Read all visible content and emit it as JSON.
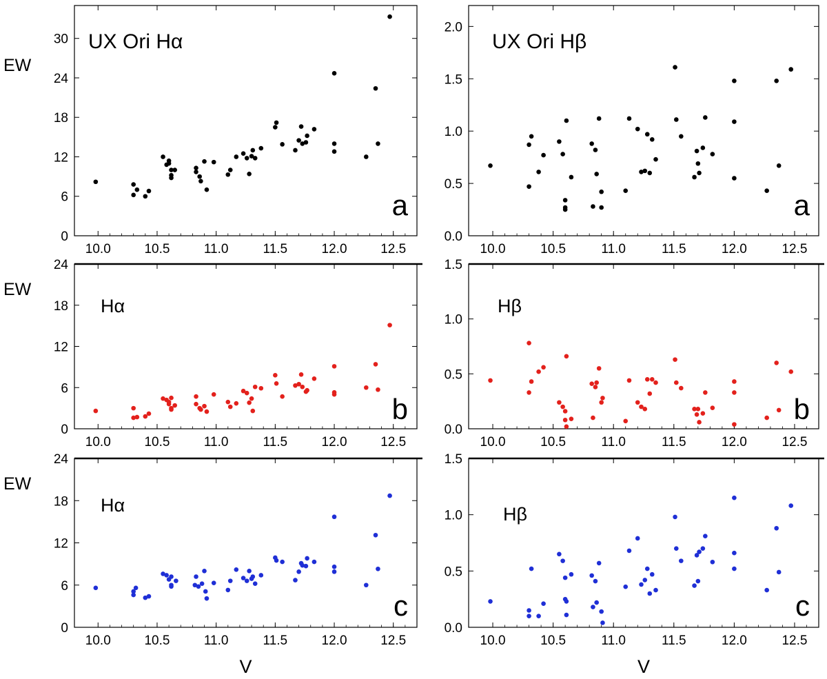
{
  "chart_data": [
    {
      "id": "ha-a",
      "type": "scatter",
      "title": "UX Ori  Hα",
      "panel_letter": "a",
      "ylabel": "EW",
      "xlabel": "",
      "color": "#000000",
      "xlim": [
        9.8,
        12.7
      ],
      "ylim": [
        0,
        35
      ],
      "xticks": [
        "10.0",
        "10.5",
        "11.0",
        "11.5",
        "12.0",
        "12.5"
      ],
      "yticks": [
        "0",
        "6",
        "12",
        "18",
        "24",
        "30"
      ],
      "ref_line": null,
      "points": [
        [
          9.98,
          8.2
        ],
        [
          10.3,
          7.8
        ],
        [
          10.3,
          6.2
        ],
        [
          10.33,
          7
        ],
        [
          10.4,
          6
        ],
        [
          10.43,
          6.8
        ],
        [
          10.55,
          12
        ],
        [
          10.58,
          10.8
        ],
        [
          10.6,
          11.4
        ],
        [
          10.6,
          11
        ],
        [
          10.62,
          10
        ],
        [
          10.62,
          9.2
        ],
        [
          10.62,
          8.8
        ],
        [
          10.65,
          10
        ],
        [
          10.83,
          10.3
        ],
        [
          10.83,
          9.7
        ],
        [
          10.86,
          9
        ],
        [
          10.87,
          8.3
        ],
        [
          10.9,
          11.3
        ],
        [
          10.92,
          7
        ],
        [
          10.98,
          11.2
        ],
        [
          11.1,
          9.3
        ],
        [
          11.12,
          10
        ],
        [
          11.17,
          12
        ],
        [
          11.23,
          12.5
        ],
        [
          11.26,
          11.8
        ],
        [
          11.28,
          9.4
        ],
        [
          11.3,
          12.1
        ],
        [
          11.31,
          13
        ],
        [
          11.33,
          11.8
        ],
        [
          11.38,
          13.3
        ],
        [
          11.5,
          16.5
        ],
        [
          11.51,
          17.2
        ],
        [
          11.56,
          13.9
        ],
        [
          11.67,
          13
        ],
        [
          11.7,
          14.5
        ],
        [
          11.72,
          16.6
        ],
        [
          11.73,
          14
        ],
        [
          11.76,
          14.2
        ],
        [
          11.77,
          15.2
        ],
        [
          11.83,
          16.2
        ],
        [
          12.0,
          24.7
        ],
        [
          12.0,
          14
        ],
        [
          12.0,
          12.8
        ],
        [
          12.27,
          12
        ],
        [
          12.35,
          22.4
        ],
        [
          12.37,
          14
        ],
        [
          12.47,
          33.3
        ]
      ]
    },
    {
      "id": "hb-a",
      "type": "scatter",
      "title": "UX Ori  Hβ",
      "panel_letter": "a",
      "ylabel": "",
      "xlabel": "",
      "color": "#000000",
      "xlim": [
        9.8,
        12.7
      ],
      "ylim": [
        0,
        2.2
      ],
      "xticks": [
        "10.0",
        "10.5",
        "11.0",
        "11.5",
        "12.0",
        "12.5"
      ],
      "yticks": [
        "0.0",
        "0.5",
        "1.0",
        "1.5",
        "2.0"
      ],
      "ref_line": null,
      "points": [
        [
          9.98,
          0.67
        ],
        [
          10.3,
          0.87
        ],
        [
          10.3,
          0.47
        ],
        [
          10.32,
          0.95
        ],
        [
          10.38,
          0.61
        ],
        [
          10.42,
          0.77
        ],
        [
          10.55,
          0.9
        ],
        [
          10.58,
          0.78
        ],
        [
          10.6,
          0.34
        ],
        [
          10.6,
          0.27
        ],
        [
          10.6,
          0.25
        ],
        [
          10.61,
          1.1
        ],
        [
          10.65,
          0.56
        ],
        [
          10.82,
          0.88
        ],
        [
          10.83,
          0.28
        ],
        [
          10.85,
          0.82
        ],
        [
          10.86,
          0.59
        ],
        [
          10.88,
          1.12
        ],
        [
          10.9,
          0.42
        ],
        [
          10.9,
          0.27
        ],
        [
          11.1,
          0.43
        ],
        [
          11.13,
          1.12
        ],
        [
          11.2,
          1.02
        ],
        [
          11.23,
          0.61
        ],
        [
          11.26,
          0.62
        ],
        [
          11.28,
          0.97
        ],
        [
          11.3,
          0.6
        ],
        [
          11.32,
          0.92
        ],
        [
          11.35,
          0.73
        ],
        [
          11.51,
          1.61
        ],
        [
          11.52,
          1.11
        ],
        [
          11.56,
          0.95
        ],
        [
          11.67,
          0.56
        ],
        [
          11.69,
          0.81
        ],
        [
          11.7,
          0.69
        ],
        [
          11.71,
          0.6
        ],
        [
          11.74,
          0.84
        ],
        [
          11.76,
          1.13
        ],
        [
          11.82,
          0.78
        ],
        [
          12.0,
          1.48
        ],
        [
          12.0,
          1.09
        ],
        [
          12.0,
          0.55
        ],
        [
          12.27,
          0.43
        ],
        [
          12.35,
          1.48
        ],
        [
          12.37,
          0.67
        ],
        [
          12.47,
          1.59
        ]
      ]
    },
    {
      "id": "ha-b",
      "type": "scatter",
      "title": "Hα",
      "panel_letter": "b",
      "ylabel": "EW",
      "xlabel": "",
      "color": "#e3211c",
      "xlim": [
        9.8,
        12.7
      ],
      "ylim": [
        0,
        24
      ],
      "xticks": [
        "10.0",
        "10.5",
        "11.0",
        "11.5",
        "12.0",
        "12.5"
      ],
      "yticks": [
        "0",
        "6",
        "12",
        "18",
        "24"
      ],
      "ref_line": 24,
      "points": [
        [
          9.98,
          2.6
        ],
        [
          10.3,
          1.6
        ],
        [
          10.3,
          3
        ],
        [
          10.33,
          1.7
        ],
        [
          10.4,
          1.8
        ],
        [
          10.43,
          2.2
        ],
        [
          10.55,
          4.4
        ],
        [
          10.58,
          4.2
        ],
        [
          10.6,
          3.9
        ],
        [
          10.6,
          3.6
        ],
        [
          10.62,
          4.5
        ],
        [
          10.62,
          3
        ],
        [
          10.62,
          2.8
        ],
        [
          10.65,
          3.4
        ],
        [
          10.83,
          4.7
        ],
        [
          10.83,
          3.6
        ],
        [
          10.86,
          3
        ],
        [
          10.87,
          2.8
        ],
        [
          10.9,
          3.3
        ],
        [
          10.92,
          2.5
        ],
        [
          10.98,
          5
        ],
        [
          11.1,
          3.9
        ],
        [
          11.12,
          3.2
        ],
        [
          11.17,
          3.7
        ],
        [
          11.23,
          5.5
        ],
        [
          11.26,
          5.2
        ],
        [
          11.28,
          3.8
        ],
        [
          11.3,
          4.4
        ],
        [
          11.31,
          2.6
        ],
        [
          11.33,
          6.1
        ],
        [
          11.38,
          5.9
        ],
        [
          11.5,
          7.8
        ],
        [
          11.51,
          6.6
        ],
        [
          11.56,
          4.7
        ],
        [
          11.67,
          6.3
        ],
        [
          11.7,
          6.5
        ],
        [
          11.72,
          7.9
        ],
        [
          11.73,
          6.1
        ],
        [
          11.76,
          5.4
        ],
        [
          11.77,
          5.6
        ],
        [
          11.83,
          7.3
        ],
        [
          12.0,
          9.1
        ],
        [
          12.0,
          5.3
        ],
        [
          12.0,
          5
        ],
        [
          12.27,
          6
        ],
        [
          12.35,
          9.4
        ],
        [
          12.37,
          5.7
        ],
        [
          12.47,
          15.1
        ]
      ]
    },
    {
      "id": "hb-b",
      "type": "scatter",
      "title": "Hβ",
      "panel_letter": "b",
      "ylabel": "",
      "xlabel": "",
      "color": "#e3211c",
      "xlim": [
        9.8,
        12.7
      ],
      "ylim": [
        0,
        1.5
      ],
      "xticks": [
        "10.0",
        "10.5",
        "11.0",
        "11.5",
        "12.0",
        "12.5"
      ],
      "yticks": [
        "0.0",
        "0.5",
        "1.0",
        "1.5"
      ],
      "ref_line": 1.5,
      "points": [
        [
          9.98,
          0.44
        ],
        [
          10.3,
          0.78
        ],
        [
          10.3,
          0.33
        ],
        [
          10.32,
          0.43
        ],
        [
          10.38,
          0.52
        ],
        [
          10.42,
          0.56
        ],
        [
          10.55,
          0.24
        ],
        [
          10.58,
          0.2
        ],
        [
          10.6,
          0.16
        ],
        [
          10.6,
          0.08
        ],
        [
          10.61,
          0.66
        ],
        [
          10.61,
          0.02
        ],
        [
          10.65,
          0.09
        ],
        [
          10.82,
          0.41
        ],
        [
          10.83,
          0.1
        ],
        [
          10.85,
          0.38
        ],
        [
          10.86,
          0.42
        ],
        [
          10.88,
          0.55
        ],
        [
          10.9,
          0.24
        ],
        [
          10.91,
          0.28
        ],
        [
          11.1,
          0.07
        ],
        [
          11.13,
          0.44
        ],
        [
          11.2,
          0.24
        ],
        [
          11.23,
          0.2
        ],
        [
          11.26,
          0.18
        ],
        [
          11.28,
          0.45
        ],
        [
          11.3,
          0.32
        ],
        [
          11.32,
          0.45
        ],
        [
          11.35,
          0.42
        ],
        [
          11.51,
          0.63
        ],
        [
          11.52,
          0.42
        ],
        [
          11.56,
          0.37
        ],
        [
          11.67,
          0.18
        ],
        [
          11.69,
          0.13
        ],
        [
          11.7,
          0.18
        ],
        [
          11.71,
          0.06
        ],
        [
          11.74,
          0.14
        ],
        [
          11.76,
          0.33
        ],
        [
          11.82,
          0.19
        ],
        [
          12.0,
          0.43
        ],
        [
          12.0,
          0.33
        ],
        [
          12.0,
          0.04
        ],
        [
          12.27,
          0.1
        ],
        [
          12.35,
          0.6
        ],
        [
          12.37,
          0.17
        ],
        [
          12.47,
          0.52
        ]
      ]
    },
    {
      "id": "ha-c",
      "type": "scatter",
      "title": "Hα",
      "panel_letter": "c",
      "ylabel": "EW",
      "xlabel": "V",
      "color": "#1f2fd6",
      "xlim": [
        9.8,
        12.7
      ],
      "ylim": [
        0,
        24
      ],
      "xticks": [
        "10.0",
        "10.5",
        "11.0",
        "11.5",
        "12.0",
        "12.5"
      ],
      "yticks": [
        "0",
        "6",
        "12",
        "18",
        "24"
      ],
      "ref_line": 24,
      "points": [
        [
          9.98,
          5.6
        ],
        [
          10.3,
          4.6
        ],
        [
          10.3,
          5.1
        ],
        [
          10.32,
          5.6
        ],
        [
          10.4,
          4.2
        ],
        [
          10.43,
          4.4
        ],
        [
          10.55,
          7.6
        ],
        [
          10.58,
          7.4
        ],
        [
          10.6,
          6.8
        ],
        [
          10.62,
          7.2
        ],
        [
          10.62,
          6
        ],
        [
          10.62,
          5.8
        ],
        [
          10.66,
          6.6
        ],
        [
          10.82,
          6
        ],
        [
          10.83,
          7.2
        ],
        [
          10.85,
          5.8
        ],
        [
          10.88,
          6.2
        ],
        [
          10.9,
          8
        ],
        [
          10.91,
          5.1
        ],
        [
          10.92,
          4.1
        ],
        [
          10.98,
          6.3
        ],
        [
          11.1,
          5.3
        ],
        [
          11.12,
          6.6
        ],
        [
          11.17,
          8.2
        ],
        [
          11.23,
          7
        ],
        [
          11.26,
          6.6
        ],
        [
          11.28,
          8
        ],
        [
          11.3,
          6.9
        ],
        [
          11.31,
          7.2
        ],
        [
          11.33,
          6.2
        ],
        [
          11.38,
          7.4
        ],
        [
          11.5,
          9.9
        ],
        [
          11.51,
          9.5
        ],
        [
          11.56,
          9.3
        ],
        [
          11.67,
          6.7
        ],
        [
          11.7,
          7.9
        ],
        [
          11.72,
          9.1
        ],
        [
          11.73,
          8.8
        ],
        [
          11.76,
          8.7
        ],
        [
          11.77,
          9.8
        ],
        [
          11.83,
          9.3
        ],
        [
          12.0,
          15.7
        ],
        [
          12.0,
          8.6
        ],
        [
          12.0,
          7.9
        ],
        [
          12.27,
          6
        ],
        [
          12.35,
          13.1
        ],
        [
          12.37,
          8.3
        ],
        [
          12.47,
          18.7
        ]
      ]
    },
    {
      "id": "hb-c",
      "type": "scatter",
      "title": "Hβ",
      "panel_letter": "c",
      "ylabel": "",
      "xlabel": "V",
      "color": "#1f2fd6",
      "xlim": [
        9.8,
        12.7
      ],
      "ylim": [
        0,
        1.5
      ],
      "xticks": [
        "10.0",
        "10.5",
        "11.0",
        "11.5",
        "12.0",
        "12.5"
      ],
      "yticks": [
        "0.0",
        "0.5",
        "1.0",
        "1.5"
      ],
      "ref_line": 1.5,
      "points": [
        [
          9.98,
          0.23
        ],
        [
          10.3,
          0.15
        ],
        [
          10.3,
          0.1
        ],
        [
          10.32,
          0.52
        ],
        [
          10.38,
          0.1
        ],
        [
          10.42,
          0.21
        ],
        [
          10.55,
          0.65
        ],
        [
          10.58,
          0.59
        ],
        [
          10.6,
          0.44
        ],
        [
          10.6,
          0.25
        ],
        [
          10.61,
          0.11
        ],
        [
          10.61,
          0.23
        ],
        [
          10.65,
          0.47
        ],
        [
          10.82,
          0.46
        ],
        [
          10.83,
          0.18
        ],
        [
          10.85,
          0.41
        ],
        [
          10.86,
          0.22
        ],
        [
          10.88,
          0.57
        ],
        [
          10.9,
          0.14
        ],
        [
          10.91,
          0.04
        ],
        [
          11.1,
          0.36
        ],
        [
          11.13,
          0.68
        ],
        [
          11.2,
          0.79
        ],
        [
          11.23,
          0.38
        ],
        [
          11.26,
          0.42
        ],
        [
          11.28,
          0.52
        ],
        [
          11.3,
          0.3
        ],
        [
          11.32,
          0.47
        ],
        [
          11.35,
          0.33
        ],
        [
          11.51,
          0.98
        ],
        [
          11.52,
          0.7
        ],
        [
          11.56,
          0.59
        ],
        [
          11.67,
          0.37
        ],
        [
          11.69,
          0.64
        ],
        [
          11.7,
          0.41
        ],
        [
          11.71,
          0.67
        ],
        [
          11.74,
          0.7
        ],
        [
          11.76,
          0.81
        ],
        [
          11.82,
          0.58
        ],
        [
          12.0,
          1.15
        ],
        [
          12.0,
          0.66
        ],
        [
          12.0,
          0.52
        ],
        [
          12.27,
          0.33
        ],
        [
          12.35,
          0.88
        ],
        [
          12.37,
          0.49
        ],
        [
          12.47,
          1.08
        ]
      ]
    }
  ]
}
